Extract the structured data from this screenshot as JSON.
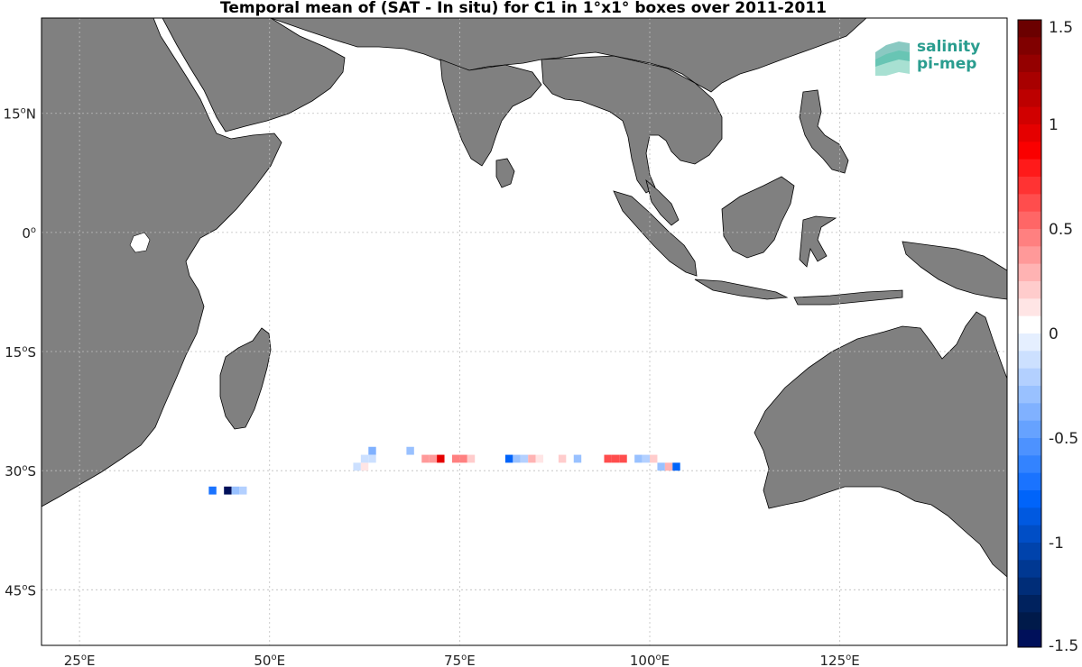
{
  "title": "Temporal mean of (SAT - In situ) for C1 in 1°x1° boxes over 2011-2011",
  "map": {
    "lon_range": [
      20,
      147
    ],
    "lat_range": [
      -52,
      27
    ],
    "lon_ticks": [
      {
        "value": 25,
        "label": "25",
        "suffix": "E"
      },
      {
        "value": 50,
        "label": "50",
        "suffix": "E"
      },
      {
        "value": 75,
        "label": "75",
        "suffix": "E"
      },
      {
        "value": 100,
        "label": "100",
        "suffix": "E"
      },
      {
        "value": 125,
        "label": "125",
        "suffix": "E"
      }
    ],
    "lat_ticks": [
      {
        "value": 15,
        "label": "15",
        "suffix": "N"
      },
      {
        "value": 0,
        "label": "0",
        "suffix": ""
      },
      {
        "value": -15,
        "label": "15",
        "suffix": "S"
      },
      {
        "value": -30,
        "label": "30",
        "suffix": "S"
      },
      {
        "value": -45,
        "label": "45",
        "suffix": "S"
      }
    ],
    "grid": true,
    "land_color": "#808080"
  },
  "colorbar": {
    "min": -1.5,
    "max": 1.5,
    "tick_labels": [
      {
        "value": 1.5,
        "label": "1.5"
      },
      {
        "value": 1,
        "label": "1"
      },
      {
        "value": 0.5,
        "label": "0.5"
      },
      {
        "value": 0,
        "label": "0"
      },
      {
        "value": -0.5,
        "label": "-0.5"
      },
      {
        "value": -1,
        "label": "-1"
      },
      {
        "value": -1.5,
        "label": "-1.5"
      }
    ],
    "colors": [
      "#6b0000",
      "#800000",
      "#940000",
      "#a80000",
      "#bd0000",
      "#d10000",
      "#e50000",
      "#fa0000",
      "#ff1a1a",
      "#ff3333",
      "#ff4d4d",
      "#ff6666",
      "#ff8080",
      "#ff9999",
      "#ffb3b3",
      "#ffcccc",
      "#ffe5e5",
      "#ffffff",
      "#e5efff",
      "#cce0ff",
      "#b3d0ff",
      "#99c1ff",
      "#80b1ff",
      "#66a2ff",
      "#4d92ff",
      "#3383ff",
      "#1a73ff",
      "#0064fa",
      "#0059e0",
      "#004ec6",
      "#0043ac",
      "#003892",
      "#002d78",
      "#00225e",
      "#001a4a",
      "#00105a"
    ]
  },
  "chart_data": {
    "type": "heatmap",
    "title": "Temporal mean of (SAT - In situ) for C1 in 1°x1° boxes over 2011-2011",
    "value_range": [
      -1.5,
      1.5
    ],
    "cells": [
      {
        "lon": 42.5,
        "lat": -32.5,
        "value": -0.7
      },
      {
        "lon": 44.5,
        "lat": -32.5,
        "value": -1.5
      },
      {
        "lon": 45.5,
        "lat": -32.5,
        "value": -0.25
      },
      {
        "lon": 46.5,
        "lat": -32.5,
        "value": -0.2
      },
      {
        "lon": 63.5,
        "lat": -27.5,
        "value": -0.4
      },
      {
        "lon": 68.5,
        "lat": -27.5,
        "value": -0.3
      },
      {
        "lon": 61.5,
        "lat": -29.5,
        "value": -0.15
      },
      {
        "lon": 62.5,
        "lat": -29.5,
        "value": 0.15
      },
      {
        "lon": 62.5,
        "lat": -28.5,
        "value": -0.15
      },
      {
        "lon": 63.5,
        "lat": -28.5,
        "value": -0.1
      },
      {
        "lon": 70.5,
        "lat": -28.5,
        "value": 0.4
      },
      {
        "lon": 71.5,
        "lat": -28.5,
        "value": 0.4
      },
      {
        "lon": 72.5,
        "lat": -28.5,
        "value": 1.0
      },
      {
        "lon": 74.5,
        "lat": -28.5,
        "value": 0.5
      },
      {
        "lon": 75.5,
        "lat": -28.5,
        "value": 0.5
      },
      {
        "lon": 76.5,
        "lat": -28.5,
        "value": 0.25
      },
      {
        "lon": 81.5,
        "lat": -28.5,
        "value": -0.8
      },
      {
        "lon": 82.5,
        "lat": -28.5,
        "value": -0.25
      },
      {
        "lon": 83.5,
        "lat": -28.5,
        "value": -0.2
      },
      {
        "lon": 84.5,
        "lat": -28.5,
        "value": 0.3
      },
      {
        "lon": 85.5,
        "lat": -28.5,
        "value": 0.15
      },
      {
        "lon": 88.5,
        "lat": -28.5,
        "value": 0.2
      },
      {
        "lon": 90.5,
        "lat": -28.5,
        "value": -0.3
      },
      {
        "lon": 94.5,
        "lat": -28.5,
        "value": 0.6
      },
      {
        "lon": 95.5,
        "lat": -28.5,
        "value": 0.6
      },
      {
        "lon": 96.5,
        "lat": -28.5,
        "value": 0.6
      },
      {
        "lon": 98.5,
        "lat": -28.5,
        "value": -0.3
      },
      {
        "lon": 99.5,
        "lat": -28.5,
        "value": -0.2
      },
      {
        "lon": 100.5,
        "lat": -28.5,
        "value": 0.2
      },
      {
        "lon": 101.5,
        "lat": -29.5,
        "value": -0.3
      },
      {
        "lon": 102.5,
        "lat": -29.5,
        "value": 0.3
      },
      {
        "lon": 103.5,
        "lat": -29.5,
        "value": -0.8
      }
    ]
  },
  "logo": {
    "line1": "salinity",
    "line2": "pi-mep"
  }
}
